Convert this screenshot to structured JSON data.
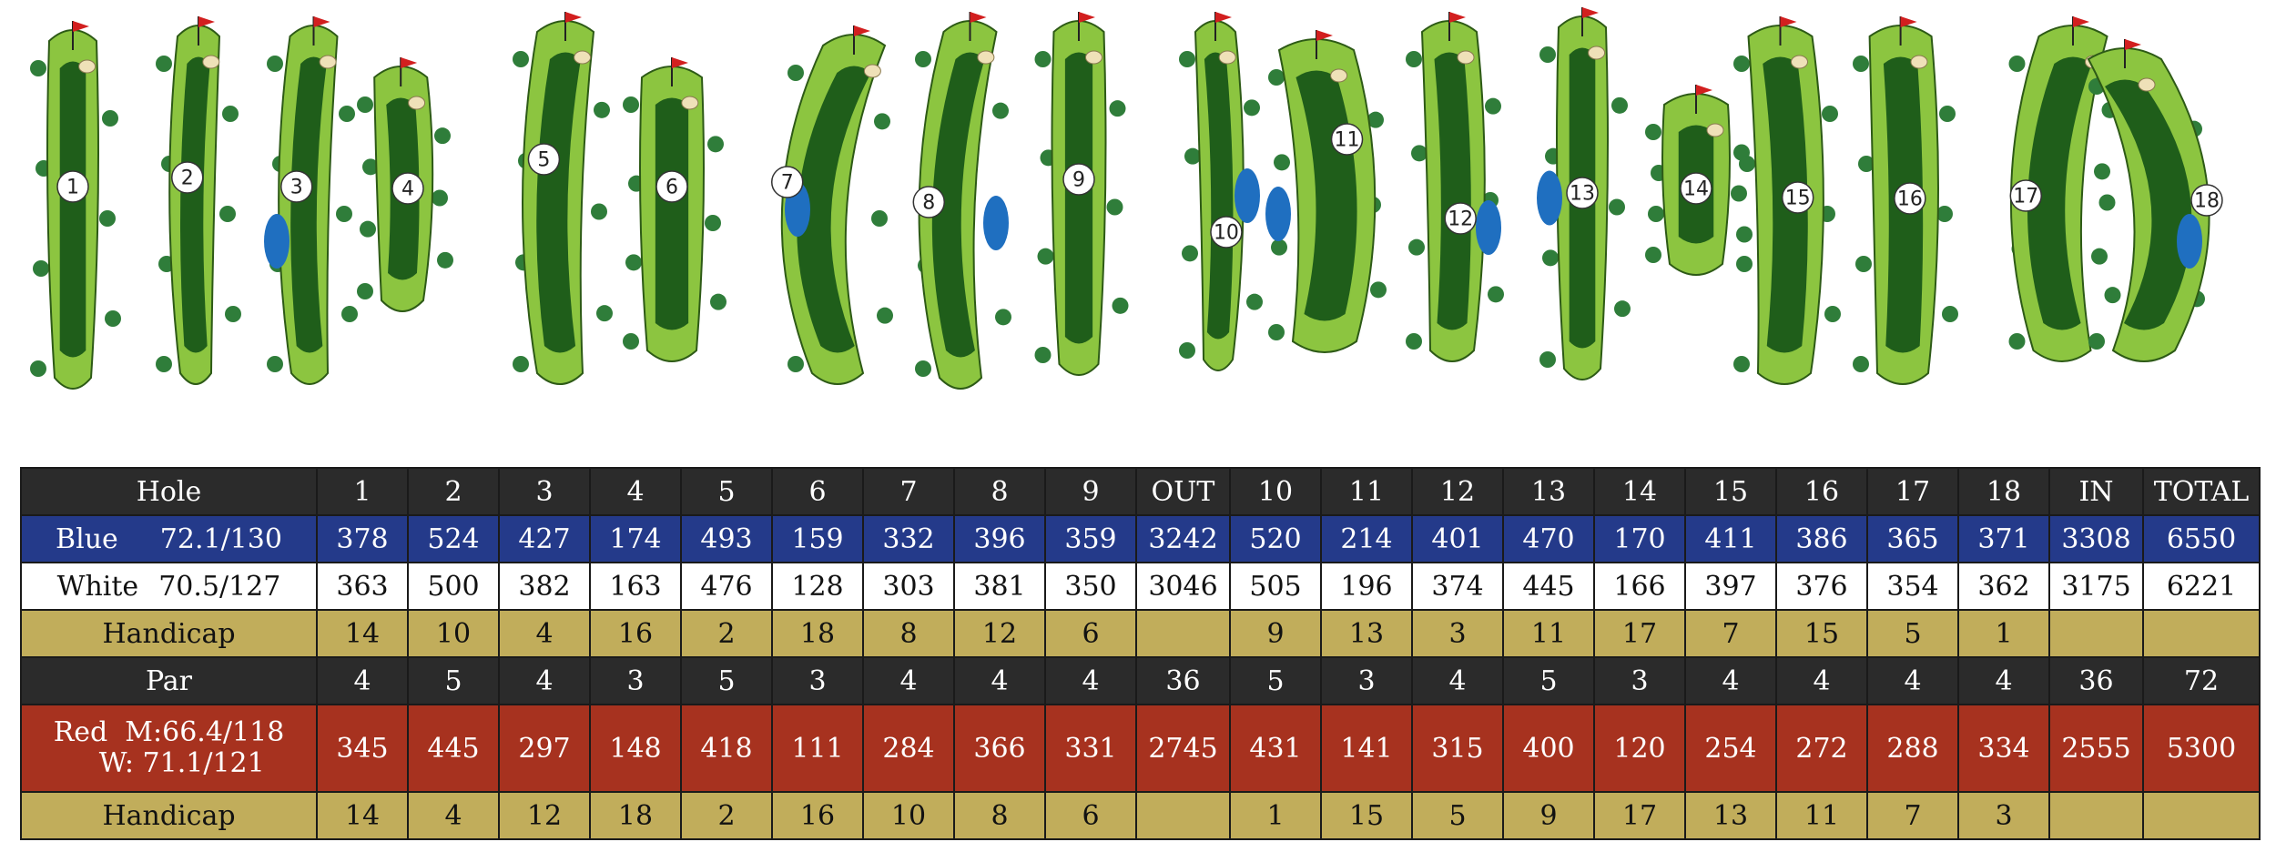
{
  "colors": {
    "header_bg": "#2b2b2b",
    "blue_tee": "#243a8a",
    "white_tee": "#ffffff",
    "handicap_bg": "#c1ad5b",
    "red_tee": "#a7321f",
    "fairway": "#5a9a2e",
    "rough": "#8cc540",
    "water": "#1f6fc0",
    "trees": "#2f7d3a",
    "sand": "#efe1b8",
    "flag": "#d21f1f"
  },
  "hole_map": {
    "holes": [
      "1",
      "2",
      "3",
      "4",
      "5",
      "6",
      "7",
      "8",
      "9",
      "10",
      "11",
      "12",
      "13",
      "14",
      "15",
      "16",
      "17",
      "18"
    ]
  },
  "scorecard": {
    "header": {
      "label": "Hole",
      "holes": [
        "1",
        "2",
        "3",
        "4",
        "5",
        "6",
        "7",
        "8",
        "9",
        "OUT",
        "10",
        "11",
        "12",
        "13",
        "14",
        "15",
        "16",
        "17",
        "18",
        "IN",
        "TOTAL"
      ]
    },
    "blue": {
      "label": "Blue",
      "rating": "72.1/130",
      "values": [
        "378",
        "524",
        "427",
        "174",
        "493",
        "159",
        "332",
        "396",
        "359",
        "3242",
        "520",
        "214",
        "401",
        "470",
        "170",
        "411",
        "386",
        "365",
        "371",
        "3308",
        "6550"
      ]
    },
    "white": {
      "label": "White",
      "rating": "70.5/127",
      "values": [
        "363",
        "500",
        "382",
        "163",
        "476",
        "128",
        "303",
        "381",
        "350",
        "3046",
        "505",
        "196",
        "374",
        "445",
        "166",
        "397",
        "376",
        "354",
        "362",
        "3175",
        "6221"
      ]
    },
    "handicap_men": {
      "label": "Handicap",
      "values": [
        "14",
        "10",
        "4",
        "16",
        "2",
        "18",
        "8",
        "12",
        "6",
        "",
        "9",
        "13",
        "3",
        "11",
        "17",
        "7",
        "15",
        "5",
        "1",
        "",
        ""
      ]
    },
    "par": {
      "label": "Par",
      "values": [
        "4",
        "5",
        "4",
        "3",
        "5",
        "3",
        "4",
        "4",
        "4",
        "36",
        "5",
        "3",
        "4",
        "5",
        "3",
        "4",
        "4",
        "4",
        "4",
        "36",
        "72"
      ]
    },
    "red": {
      "label_line1": "Red  M:66.4/118",
      "label_line2": "W: 71.1/121",
      "values": [
        "345",
        "445",
        "297",
        "148",
        "418",
        "111",
        "284",
        "366",
        "331",
        "2745",
        "431",
        "141",
        "315",
        "400",
        "120",
        "254",
        "272",
        "288",
        "334",
        "2555",
        "5300"
      ]
    },
    "handicap_women": {
      "label": "Handicap",
      "values": [
        "14",
        "4",
        "12",
        "18",
        "2",
        "16",
        "10",
        "8",
        "6",
        "",
        "1",
        "15",
        "5",
        "9",
        "17",
        "13",
        "11",
        "7",
        "3",
        "",
        ""
      ]
    }
  }
}
